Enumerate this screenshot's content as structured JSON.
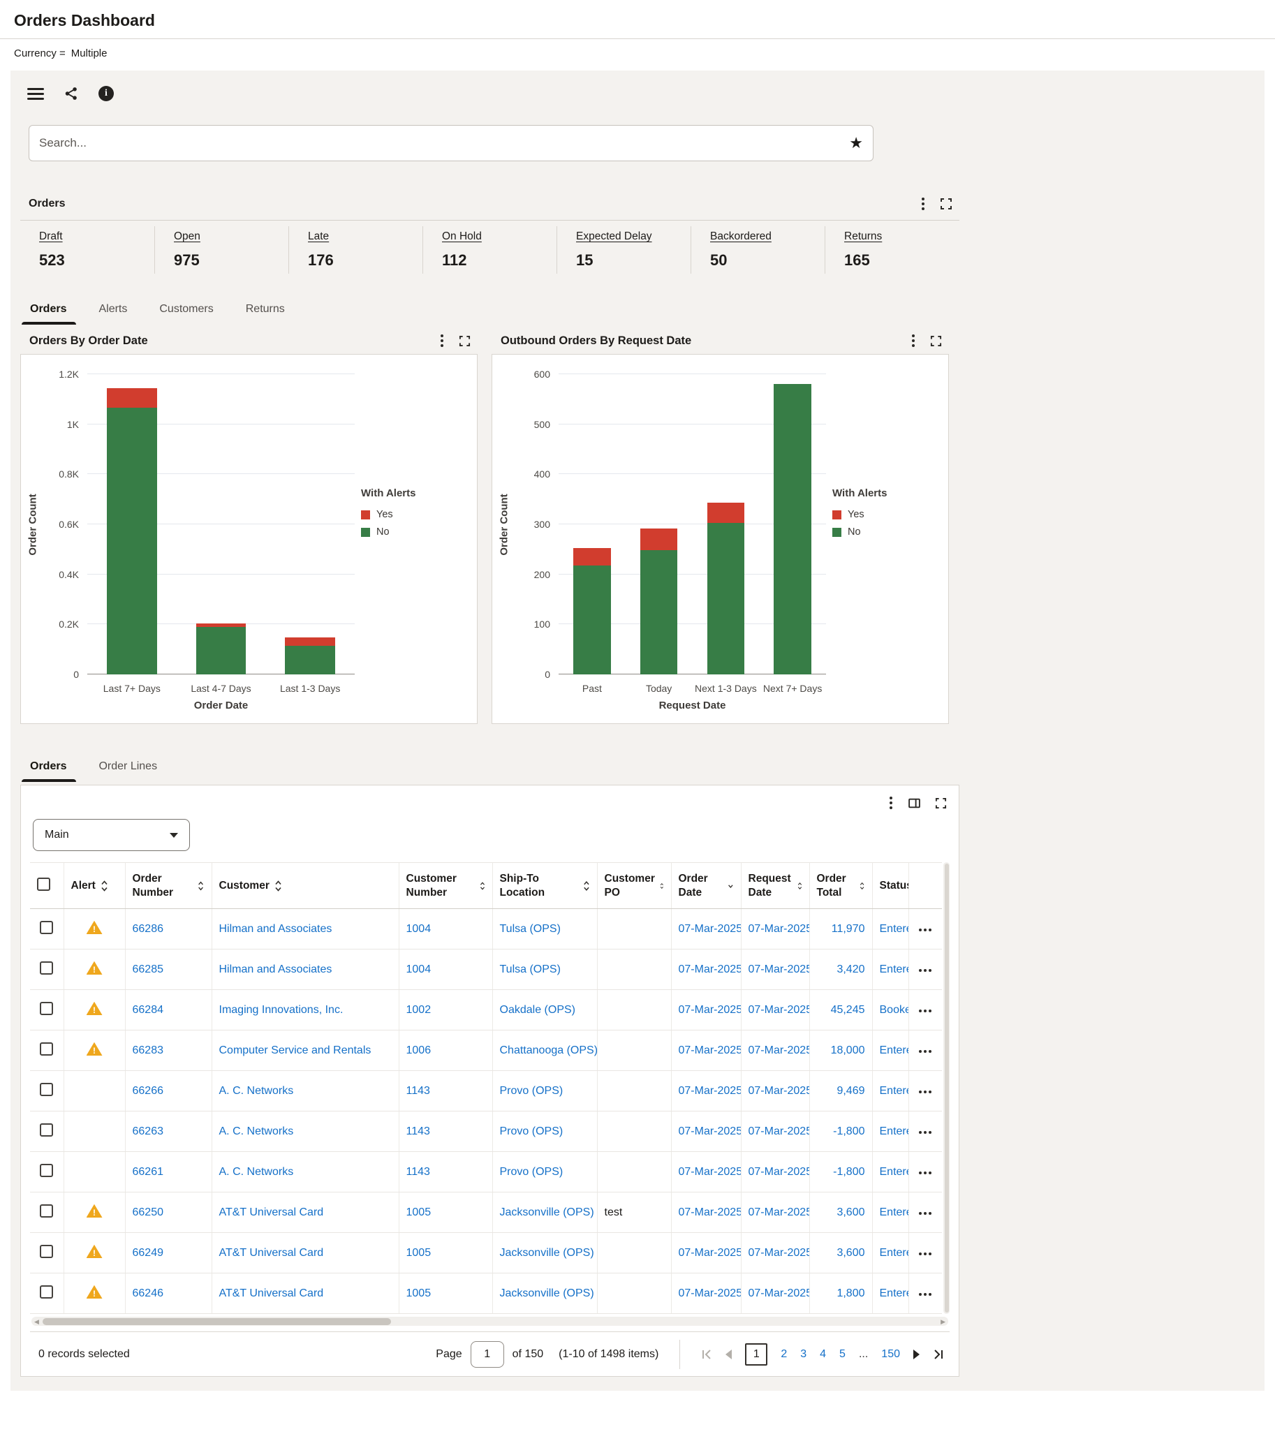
{
  "page": {
    "title": "Orders Dashboard",
    "filter": {
      "label": "Currency =",
      "value": "Multiple"
    }
  },
  "search": {
    "placeholder": "Search..."
  },
  "summary": {
    "title": "Orders",
    "kpis": [
      {
        "label": "Draft",
        "value": "523"
      },
      {
        "label": "Open",
        "value": "975"
      },
      {
        "label": "Late",
        "value": "176"
      },
      {
        "label": "On Hold",
        "value": "112"
      },
      {
        "label": "Expected Delay",
        "value": "15"
      },
      {
        "label": "Backordered",
        "value": "50"
      },
      {
        "label": "Returns",
        "value": "165"
      }
    ]
  },
  "top_tabs": {
    "items": [
      "Orders",
      "Alerts",
      "Customers",
      "Returns"
    ],
    "active": 0
  },
  "chart_data": [
    {
      "type": "bar",
      "stacked": true,
      "title": "Orders By Order Date",
      "categories": [
        "Last 7+ Days",
        "Last 4-7 Days",
        "Last 1-3 Days"
      ],
      "series": [
        {
          "name": "No",
          "color": "#377d46",
          "values": [
            1065,
            190,
            114
          ]
        },
        {
          "name": "Yes",
          "color": "#d13d2e",
          "values": [
            80,
            15,
            35
          ]
        }
      ],
      "xlabel": "Order Date",
      "ylabel": "Order Count",
      "ylim": [
        0,
        1200
      ],
      "yticks": [
        {
          "v": 0,
          "label": "0"
        },
        {
          "v": 200,
          "label": "0.2K"
        },
        {
          "v": 400,
          "label": "0.4K"
        },
        {
          "v": 600,
          "label": "0.6K"
        },
        {
          "v": 800,
          "label": "0.8K"
        },
        {
          "v": 1000,
          "label": "1K"
        },
        {
          "v": 1200,
          "label": "1.2K"
        }
      ],
      "grid": true,
      "legend": {
        "title": "With Alerts",
        "position": "right",
        "items": [
          {
            "label": "Yes",
            "color": "#d13d2e"
          },
          {
            "label": "No",
            "color": "#377d46"
          }
        ]
      }
    },
    {
      "type": "bar",
      "stacked": true,
      "title": "Outbound Orders By Request Date",
      "categories": [
        "Past",
        "Today",
        "Next 1-3 Days",
        "Next 7+ Days"
      ],
      "series": [
        {
          "name": "No",
          "color": "#377d46",
          "values": [
            218,
            248,
            303,
            580
          ]
        },
        {
          "name": "Yes",
          "color": "#d13d2e",
          "values": [
            34,
            44,
            40,
            0
          ]
        }
      ],
      "xlabel": "Request Date",
      "ylabel": "Order Count",
      "ylim": [
        0,
        600
      ],
      "yticks": [
        {
          "v": 0,
          "label": "0"
        },
        {
          "v": 100,
          "label": "100"
        },
        {
          "v": 200,
          "label": "200"
        },
        {
          "v": 300,
          "label": "300"
        },
        {
          "v": 400,
          "label": "400"
        },
        {
          "v": 500,
          "label": "500"
        },
        {
          "v": 600,
          "label": "600"
        }
      ],
      "grid": true,
      "legend": {
        "title": "With Alerts",
        "position": "right",
        "items": [
          {
            "label": "Yes",
            "color": "#d13d2e"
          },
          {
            "label": "No",
            "color": "#377d46"
          }
        ]
      }
    }
  ],
  "table_tabs": {
    "items": [
      "Orders",
      "Order Lines"
    ],
    "active": 0
  },
  "table": {
    "view_selector": "Main",
    "columns": [
      "Alert",
      "Order Number",
      "Customer",
      "Customer Number",
      "Ship-To Location",
      "Customer PO",
      "Order Date",
      "Request Date",
      "Order Total",
      "Status"
    ],
    "sorted_column": "Order Date",
    "sort_direction": "descending",
    "rows": [
      {
        "alert": true,
        "order_number": "66286",
        "customer": "Hilman and Associates",
        "customer_number": "1004",
        "ship_to": "Tulsa (OPS)",
        "customer_po": "",
        "order_date": "07-Mar-2025",
        "request_date": "07-Mar-2025",
        "order_total": "11,970",
        "status": "Entered"
      },
      {
        "alert": true,
        "order_number": "66285",
        "customer": "Hilman and Associates",
        "customer_number": "1004",
        "ship_to": "Tulsa (OPS)",
        "customer_po": "",
        "order_date": "07-Mar-2025",
        "request_date": "07-Mar-2025",
        "order_total": "3,420",
        "status": "Entered"
      },
      {
        "alert": true,
        "order_number": "66284",
        "customer": "Imaging Innovations, Inc.",
        "customer_number": "1002",
        "ship_to": "Oakdale (OPS)",
        "customer_po": "",
        "order_date": "07-Mar-2025",
        "request_date": "07-Mar-2025",
        "order_total": "45,245",
        "status": "Booked"
      },
      {
        "alert": true,
        "order_number": "66283",
        "customer": "Computer Service and Rentals",
        "customer_number": "1006",
        "ship_to": "Chattanooga (OPS)",
        "customer_po": "",
        "order_date": "07-Mar-2025",
        "request_date": "07-Mar-2025",
        "order_total": "18,000",
        "status": "Entered"
      },
      {
        "alert": false,
        "order_number": "66266",
        "customer": "A. C. Networks",
        "customer_number": "1143",
        "ship_to": "Provo (OPS)",
        "customer_po": "",
        "order_date": "07-Mar-2025",
        "request_date": "07-Mar-2025",
        "order_total": "9,469",
        "status": "Entered"
      },
      {
        "alert": false,
        "order_number": "66263",
        "customer": "A. C. Networks",
        "customer_number": "1143",
        "ship_to": "Provo (OPS)",
        "customer_po": "",
        "order_date": "07-Mar-2025",
        "request_date": "07-Mar-2025",
        "order_total": "-1,800",
        "status": "Entered"
      },
      {
        "alert": false,
        "order_number": "66261",
        "customer": "A. C. Networks",
        "customer_number": "1143",
        "ship_to": "Provo (OPS)",
        "customer_po": "",
        "order_date": "07-Mar-2025",
        "request_date": "07-Mar-2025",
        "order_total": "-1,800",
        "status": "Entered"
      },
      {
        "alert": true,
        "order_number": "66250",
        "customer": "AT&T Universal Card",
        "customer_number": "1005",
        "ship_to": "Jacksonville (OPS)",
        "customer_po": "test",
        "order_date": "07-Mar-2025",
        "request_date": "07-Mar-2025",
        "order_total": "3,600",
        "status": "Entered"
      },
      {
        "alert": true,
        "order_number": "66249",
        "customer": "AT&T Universal Card",
        "customer_number": "1005",
        "ship_to": "Jacksonville (OPS)",
        "customer_po": "",
        "order_date": "07-Mar-2025",
        "request_date": "07-Mar-2025",
        "order_total": "3,600",
        "status": "Entered"
      },
      {
        "alert": true,
        "order_number": "66246",
        "customer": "AT&T Universal Card",
        "customer_number": "1005",
        "ship_to": "Jacksonville (OPS)",
        "customer_po": "",
        "order_date": "07-Mar-2025",
        "request_date": "07-Mar-2025",
        "order_total": "1,800",
        "status": "Entered"
      }
    ],
    "footer": {
      "selected_text": "0 records selected",
      "page_label": "Page",
      "page_value": "1",
      "of_text": "of 150",
      "range_text": "(1-10 of 1498 items)",
      "pages": [
        "1",
        "2",
        "3",
        "4",
        "5",
        "...",
        "150"
      ],
      "active_page": "1"
    }
  }
}
